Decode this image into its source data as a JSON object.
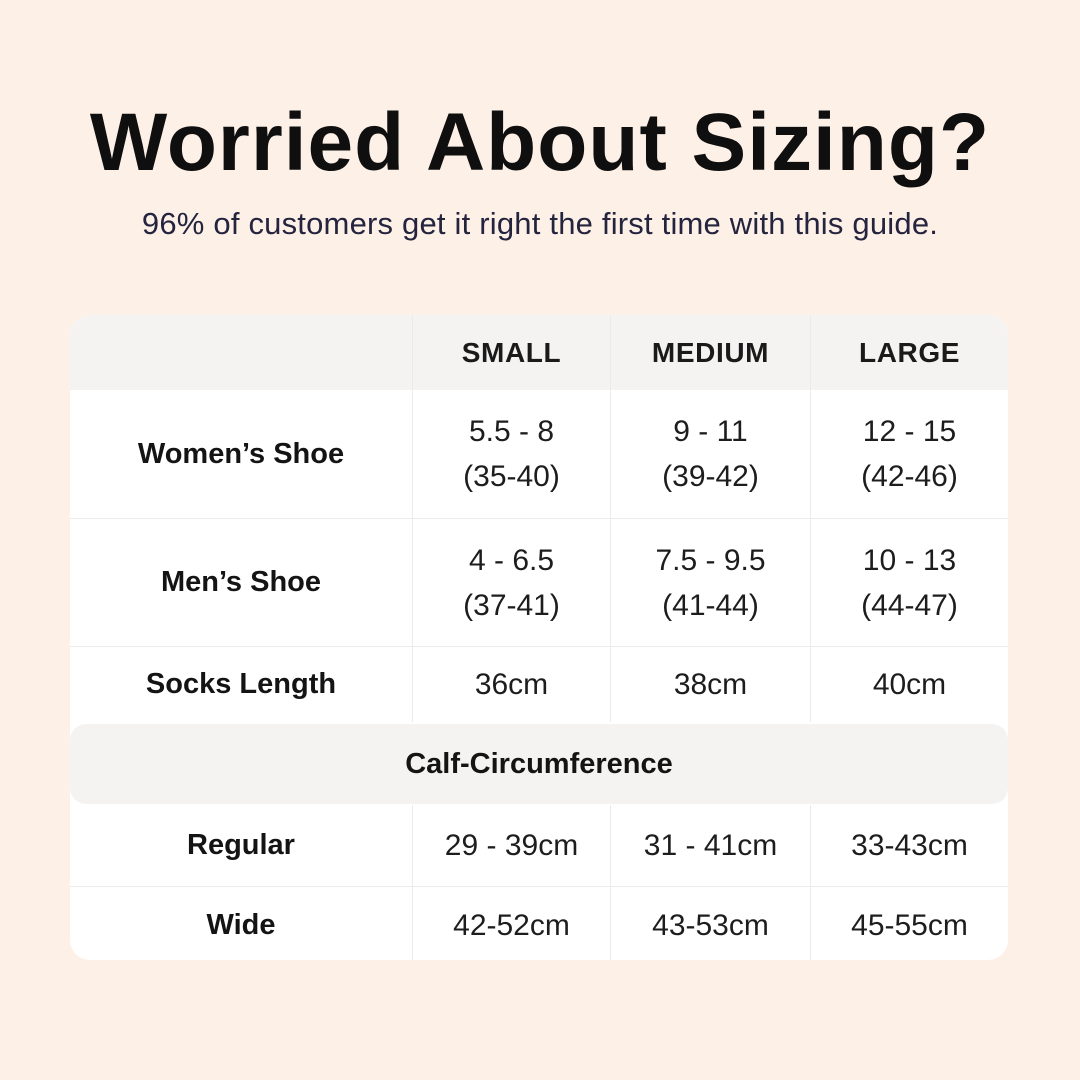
{
  "page": {
    "title": "Worried About Sizing?",
    "subtitle": "96% of customers get it right the first time with this guide."
  },
  "table": {
    "headers": [
      "SMALL",
      "MEDIUM",
      "LARGE"
    ],
    "rows": [
      {
        "label": "Women’s Shoe",
        "cells": [
          {
            "line1": "5.5 - 8",
            "line2": "(35-40)"
          },
          {
            "line1": "9 - 11",
            "line2": "(39-42)"
          },
          {
            "line1": "12 - 15",
            "line2": "(42-46)"
          }
        ]
      },
      {
        "label": "Men’s Shoe",
        "cells": [
          {
            "line1": "4 - 6.5",
            "line2": "(37-41)"
          },
          {
            "line1": "7.5 - 9.5",
            "line2": "(41-44)"
          },
          {
            "line1": "10 - 13",
            "line2": "(44-47)"
          }
        ]
      },
      {
        "label": "Socks Length",
        "cells": [
          {
            "line1": "36cm"
          },
          {
            "line1": "38cm"
          },
          {
            "line1": "40cm"
          }
        ]
      }
    ],
    "section_header": "Calf-Circumference",
    "section_rows": [
      {
        "label": "Regular",
        "cells": [
          {
            "line1": "29 - 39cm"
          },
          {
            "line1": "31 - 41cm"
          },
          {
            "line1": "33-43cm"
          }
        ]
      },
      {
        "label": "Wide",
        "cells": [
          {
            "line1": "42-52cm"
          },
          {
            "line1": "43-53cm"
          },
          {
            "line1": "45-55cm"
          }
        ]
      }
    ]
  },
  "colors": {
    "background": "#fdf0e7",
    "card_bg": "#ffffff",
    "header_bg": "#f4f3f1",
    "divider": "#ebebeb",
    "title_text": "#0f0f0f",
    "subtitle_text": "#24243e",
    "body_text": "#1d1d1d"
  }
}
